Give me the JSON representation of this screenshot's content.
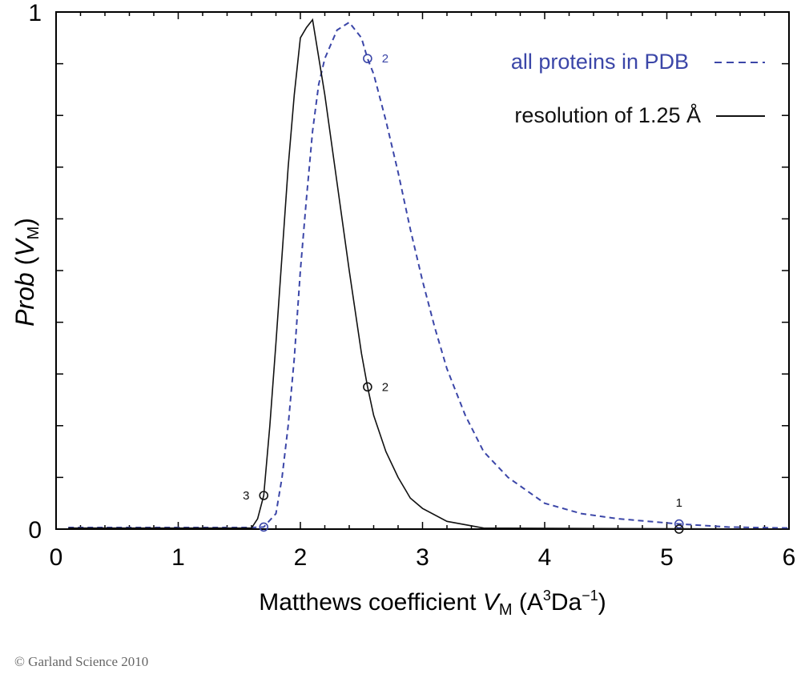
{
  "chart_data": {
    "type": "line",
    "xlabel": "Matthews coefficient V_M (A³Da⁻¹)",
    "xlabel_parts": {
      "main": "Matthews coefficient ",
      "var": "V",
      "sub": "M",
      "unit_open": " (A",
      "sup1": "3",
      "unit_mid": "Da",
      "sup2": "−1",
      "unit_close": ")"
    },
    "ylabel": "Prob (V_M)",
    "ylabel_parts": {
      "italic": "Prob",
      "open": " (",
      "var": "V",
      "sub": "M",
      "close": ")"
    },
    "xlim": [
      0,
      6
    ],
    "ylim": [
      0,
      1
    ],
    "x_ticks": [
      "0",
      "1",
      "2",
      "3",
      "4",
      "5",
      "6"
    ],
    "y_ticks": [
      "0",
      "1"
    ],
    "grid": false,
    "legend_position": "top-right",
    "series": [
      {
        "name": "all proteins in PDB",
        "color": "#3b46a8",
        "style": "dashed",
        "x": [
          0.1,
          1.6,
          1.7,
          1.8,
          1.85,
          1.9,
          1.95,
          2.0,
          2.05,
          2.1,
          2.15,
          2.2,
          2.3,
          2.4,
          2.5,
          2.55,
          2.6,
          2.7,
          2.8,
          2.9,
          3.0,
          3.1,
          3.2,
          3.35,
          3.5,
          3.7,
          4.0,
          4.3,
          4.6,
          5.1,
          5.5,
          6.0
        ],
        "y": [
          0.003,
          0.003,
          0.004,
          0.03,
          0.1,
          0.2,
          0.33,
          0.5,
          0.64,
          0.77,
          0.86,
          0.91,
          0.965,
          0.98,
          0.95,
          0.91,
          0.88,
          0.79,
          0.69,
          0.58,
          0.48,
          0.39,
          0.31,
          0.22,
          0.15,
          0.1,
          0.05,
          0.03,
          0.02,
          0.01,
          0.004,
          0.002
        ],
        "markers": [
          {
            "x": 1.7,
            "y": 0.004,
            "label": ""
          },
          {
            "x": 2.55,
            "y": 0.91,
            "label": "2"
          },
          {
            "x": 5.1,
            "y": 0.01,
            "label": ""
          }
        ]
      },
      {
        "name": "resolution of 1.25 Å",
        "color": "#111111",
        "style": "solid",
        "x": [
          0.1,
          1.6,
          1.65,
          1.7,
          1.75,
          1.8,
          1.85,
          1.9,
          1.95,
          2.0,
          2.05,
          2.1,
          2.2,
          2.3,
          2.4,
          2.5,
          2.55,
          2.6,
          2.7,
          2.8,
          2.9,
          3.0,
          3.2,
          3.5,
          6.0
        ],
        "y": [
          0.002,
          0.002,
          0.02,
          0.065,
          0.2,
          0.36,
          0.53,
          0.7,
          0.84,
          0.95,
          0.97,
          0.985,
          0.84,
          0.67,
          0.5,
          0.34,
          0.275,
          0.22,
          0.15,
          0.1,
          0.06,
          0.04,
          0.015,
          0.002,
          0.0
        ],
        "markers": [
          {
            "x": 1.7,
            "y": 0.065,
            "label": "3"
          },
          {
            "x": 2.55,
            "y": 0.275,
            "label": "2"
          },
          {
            "x": 5.1,
            "y": 0.0,
            "label": "1"
          }
        ]
      }
    ]
  },
  "copyright": "© Garland Science 2010"
}
